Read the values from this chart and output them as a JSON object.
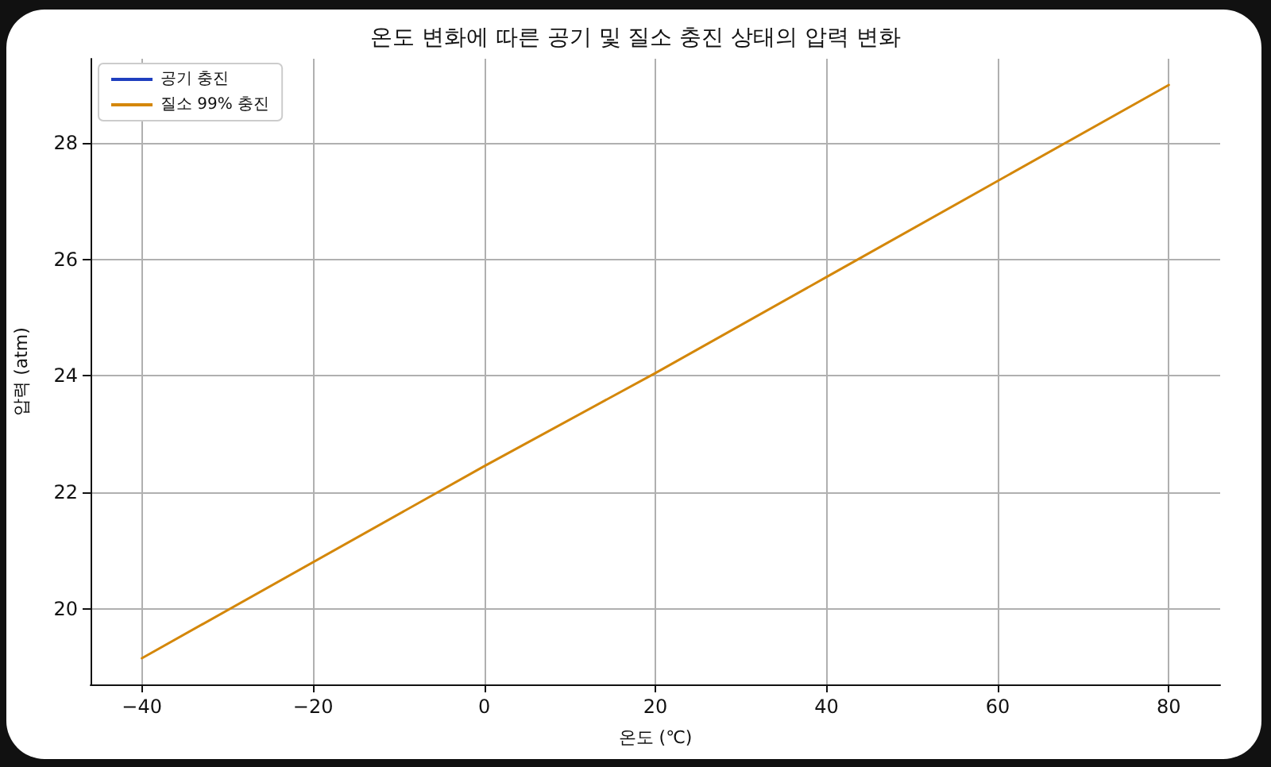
{
  "chart_data": {
    "type": "line",
    "title": "온도 변화에 따른 공기 및 질소 충진 상태의 압력 변화",
    "xlabel": "온도 (℃)",
    "ylabel": "압력 (atm)",
    "x": [
      -40,
      0,
      20,
      40,
      80
    ],
    "series": [
      {
        "name": "공기 충진",
        "color": "#1f3fbf",
        "values": [
          null,
          null,
          null,
          null,
          null
        ]
      },
      {
        "name": "질소 99% 충진",
        "color": "#d4870a",
        "values": [
          19.15,
          22.45,
          24.05,
          25.7,
          29.0
        ]
      }
    ],
    "xlim": [
      -46,
      86
    ],
    "xticks": [
      {
        "value": -40,
        "label": "−40"
      },
      {
        "value": -20,
        "label": "−20"
      },
      0,
      20,
      40,
      60,
      80
    ],
    "ylim": [
      18.7,
      29.45
    ],
    "yticks": [
      20,
      22,
      24,
      26,
      28
    ],
    "grid": true,
    "legend": "top left",
    "marker": "none",
    "line_style": "solid"
  }
}
